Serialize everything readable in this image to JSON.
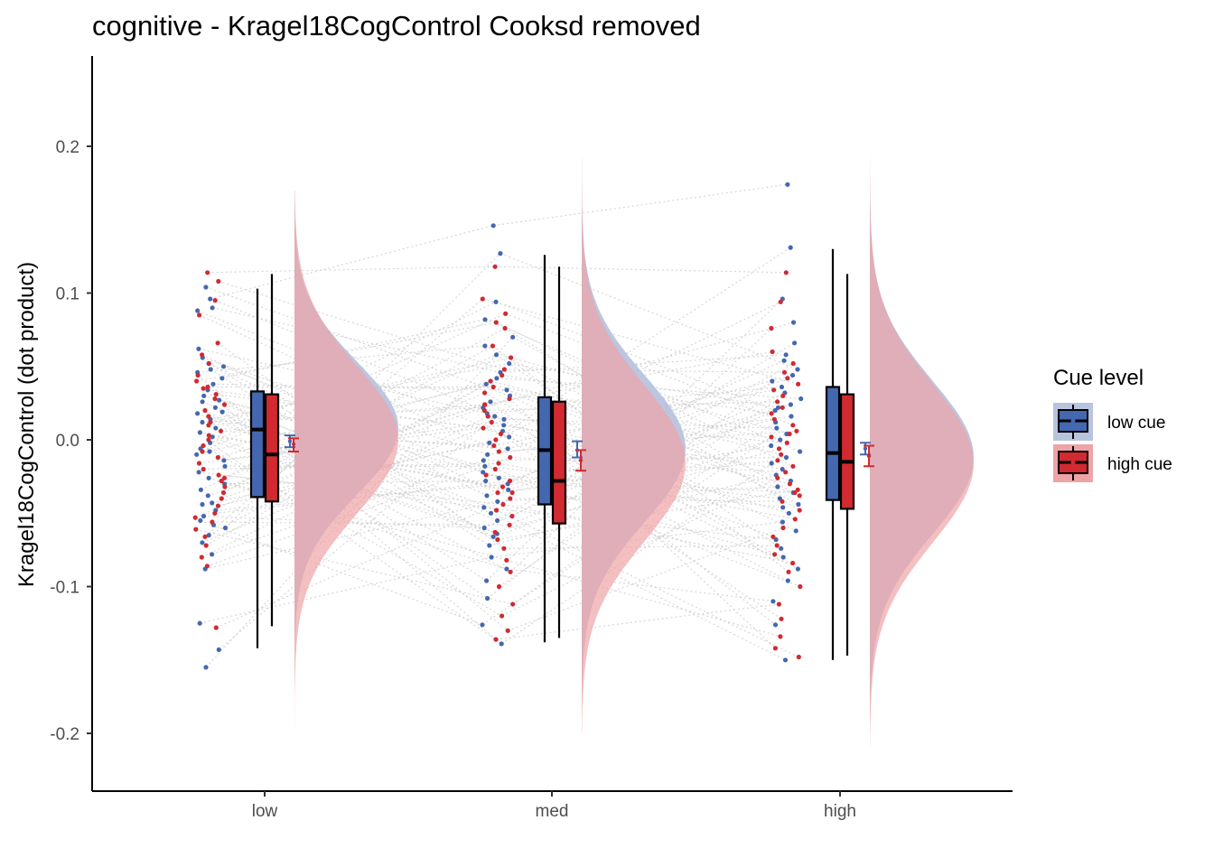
{
  "chart_data": {
    "type": "raincloud",
    "title": "cognitive  -  Kragel18CogControl  Cooksd removed",
    "ylabel": "Kragel18CogControl  (dot product)",
    "xlabel": "",
    "categories": [
      "low",
      "med",
      "high"
    ],
    "ylim": [
      -0.235,
      0.26
    ],
    "yticks": [
      -0.2,
      -0.1,
      0.0,
      0.1,
      0.2
    ],
    "ytick_labels": [
      "-0.2",
      "-0.1",
      "0.0",
      "0.1",
      "0.2"
    ],
    "grid": false,
    "legend": {
      "title": "Cue level",
      "position": "right",
      "entries": [
        "low cue",
        "high cue"
      ]
    },
    "colors": {
      "low cue": "#4468b0",
      "high cue": "#d12a30",
      "low cue fill": "#b8c3de",
      "high cue fill": "#eea4a7",
      "overlap": "#c49aa8",
      "lines": "#cccccc"
    },
    "series": [
      {
        "name": "low cue",
        "box": [
          {
            "category": "low",
            "min": -0.142,
            "q1": -0.039,
            "median": 0.007,
            "q3": 0.033,
            "max": 0.103
          },
          {
            "category": "med",
            "min": -0.138,
            "q1": -0.044,
            "median": -0.007,
            "q3": 0.029,
            "max": 0.126
          },
          {
            "category": "high",
            "min": -0.15,
            "q1": -0.041,
            "median": -0.009,
            "q3": 0.036,
            "max": 0.13
          }
        ],
        "mean_ci": [
          {
            "category": "low",
            "mean": -0.001,
            "lower": -0.005,
            "upper": 0.003
          },
          {
            "category": "med",
            "mean": -0.007,
            "lower": -0.012,
            "upper": -0.001
          },
          {
            "category": "high",
            "mean": -0.006,
            "lower": -0.01,
            "upper": -0.002
          }
        ],
        "density": [
          {
            "category": "low",
            "mean": 0.008,
            "sd": 0.045,
            "min": -0.2,
            "max": 0.17
          },
          {
            "category": "med",
            "mean": -0.006,
            "sd": 0.05,
            "min": -0.18,
            "max": 0.2
          },
          {
            "category": "high",
            "mean": -0.012,
            "sd": 0.052,
            "min": -0.2,
            "max": 0.24
          }
        ]
      },
      {
        "name": "high cue",
        "box": [
          {
            "category": "low",
            "min": -0.127,
            "q1": -0.042,
            "median": -0.01,
            "q3": 0.031,
            "max": 0.113
          },
          {
            "category": "med",
            "min": -0.135,
            "q1": -0.057,
            "median": -0.028,
            "q3": 0.026,
            "max": 0.118
          },
          {
            "category": "high",
            "min": -0.147,
            "q1": -0.047,
            "median": -0.015,
            "q3": 0.031,
            "max": 0.113
          }
        ],
        "mean_ci": [
          {
            "category": "low",
            "mean": -0.003,
            "lower": -0.008,
            "upper": 0.001
          },
          {
            "category": "med",
            "mean": -0.014,
            "lower": -0.021,
            "upper": -0.007
          },
          {
            "category": "high",
            "mean": -0.011,
            "lower": -0.018,
            "upper": -0.004
          }
        ],
        "density": [
          {
            "category": "low",
            "mean": 0.0,
            "sd": 0.05,
            "min": -0.21,
            "max": 0.17
          },
          {
            "category": "med",
            "mean": -0.016,
            "sd": 0.053,
            "min": -0.2,
            "max": 0.21
          },
          {
            "category": "high",
            "mean": -0.016,
            "sd": 0.054,
            "min": -0.21,
            "max": 0.18
          }
        ]
      }
    ],
    "points": {
      "low": {
        "low cue": [
          0.096,
          0.09,
          0.062,
          0.056,
          0.052,
          0.048,
          0.046,
          0.042,
          0.038,
          0.034,
          0.03,
          0.027,
          0.022,
          0.018,
          0.014,
          0.012,
          0.008,
          0.005,
          0.002,
          -0.002,
          -0.006,
          -0.01,
          -0.014,
          -0.018,
          -0.022,
          -0.026,
          -0.03,
          -0.034,
          -0.038,
          -0.043,
          -0.048,
          -0.052,
          -0.055,
          -0.06,
          -0.065,
          -0.07,
          -0.078,
          -0.088,
          -0.125,
          -0.143,
          -0.155,
          0.104,
          0.088,
          0.05,
          0.026,
          0.019,
          -0.008,
          -0.044,
          -0.058
        ],
        "high cue": [
          0.114,
          0.108,
          0.095,
          0.085,
          0.058,
          0.052,
          0.044,
          0.04,
          0.036,
          0.031,
          0.028,
          0.024,
          0.02,
          0.016,
          0.012,
          0.01,
          0.006,
          0.003,
          0.0,
          -0.004,
          -0.008,
          -0.012,
          -0.016,
          -0.02,
          -0.024,
          -0.028,
          -0.032,
          -0.036,
          -0.04,
          -0.045,
          -0.05,
          -0.056,
          -0.061,
          -0.066,
          -0.072,
          -0.08,
          -0.086,
          -0.128,
          0.066,
          0.035,
          -0.026,
          -0.053
        ]
      },
      "med": {
        "low cue": [
          0.146,
          0.127,
          0.094,
          0.082,
          0.07,
          0.058,
          0.052,
          0.046,
          0.042,
          0.038,
          0.034,
          0.03,
          0.026,
          0.022,
          0.018,
          0.014,
          0.01,
          0.006,
          0.002,
          -0.002,
          -0.006,
          -0.01,
          -0.014,
          -0.018,
          -0.022,
          -0.026,
          -0.03,
          -0.034,
          -0.038,
          -0.042,
          -0.046,
          -0.05,
          -0.055,
          -0.06,
          -0.066,
          -0.072,
          -0.08,
          -0.088,
          -0.096,
          -0.108,
          -0.126,
          -0.139,
          0.064,
          0.016,
          -0.028,
          -0.064
        ],
        "high cue": [
          0.118,
          0.096,
          0.086,
          0.08,
          0.076,
          0.064,
          0.056,
          0.048,
          0.044,
          0.04,
          0.036,
          0.032,
          0.028,
          0.024,
          0.02,
          0.016,
          0.012,
          0.008,
          0.004,
          0.0,
          -0.004,
          -0.008,
          -0.012,
          -0.016,
          -0.02,
          -0.024,
          -0.028,
          -0.032,
          -0.036,
          -0.04,
          -0.044,
          -0.048,
          -0.052,
          -0.058,
          -0.063,
          -0.068,
          -0.074,
          -0.082,
          -0.09,
          -0.1,
          -0.112,
          -0.12,
          -0.13,
          -0.136,
          0.024,
          -0.036
        ]
      },
      "high": {
        "low cue": [
          0.174,
          0.131,
          0.096,
          0.08,
          0.066,
          0.058,
          0.054,
          0.048,
          0.044,
          0.04,
          0.036,
          0.032,
          0.028,
          0.024,
          0.02,
          0.016,
          0.012,
          0.008,
          0.004,
          0.0,
          -0.004,
          -0.008,
          -0.012,
          -0.016,
          -0.02,
          -0.024,
          -0.028,
          -0.032,
          -0.036,
          -0.04,
          -0.044,
          -0.05,
          -0.056,
          -0.062,
          -0.068,
          -0.074,
          -0.08,
          -0.088,
          -0.096,
          -0.11,
          -0.126,
          -0.15,
          0.022,
          -0.046
        ],
        "high cue": [
          0.114,
          0.094,
          0.076,
          0.06,
          0.052,
          0.046,
          0.042,
          0.038,
          0.034,
          0.03,
          0.026,
          0.022,
          0.018,
          0.014,
          0.01,
          0.006,
          0.002,
          -0.002,
          -0.006,
          -0.01,
          -0.014,
          -0.018,
          -0.022,
          -0.026,
          -0.03,
          -0.034,
          -0.038,
          -0.042,
          -0.048,
          -0.054,
          -0.06,
          -0.066,
          -0.072,
          -0.078,
          -0.084,
          -0.09,
          -0.1,
          -0.112,
          -0.122,
          -0.134,
          -0.142,
          -0.148,
          0.004,
          -0.036
        ]
      }
    }
  }
}
